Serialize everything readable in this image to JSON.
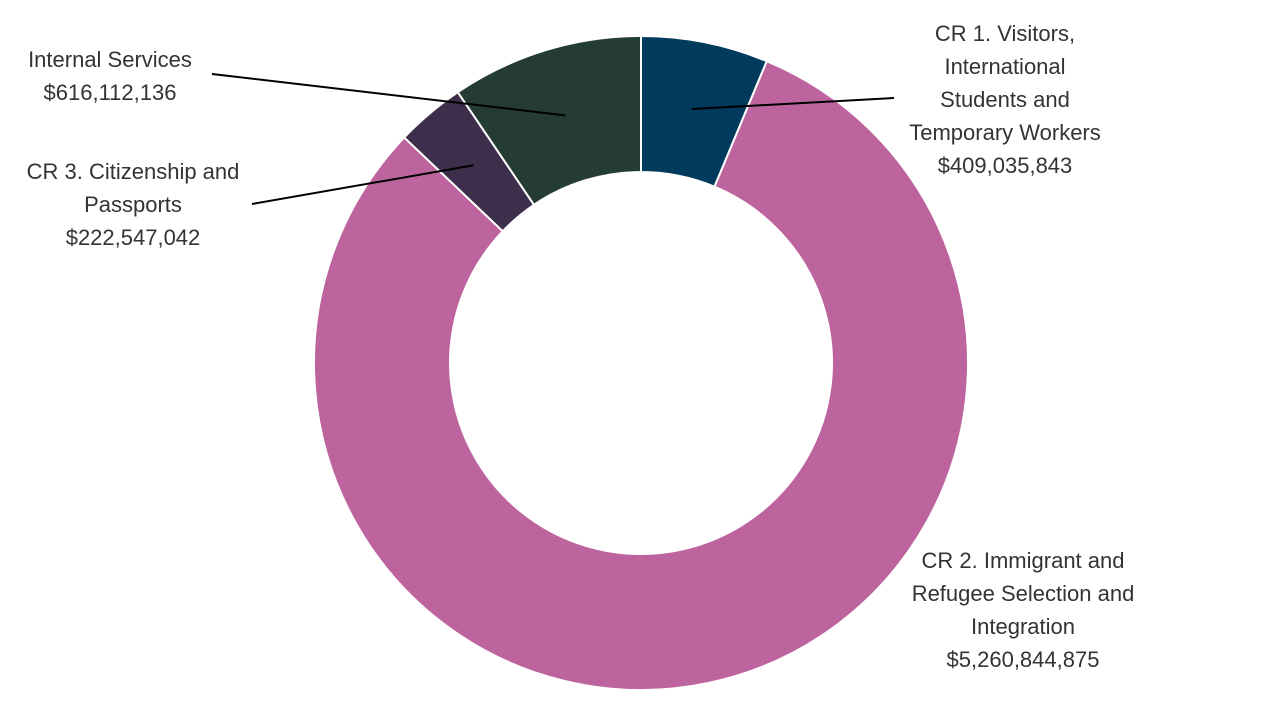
{
  "chart_data": {
    "type": "pie",
    "variant": "donut",
    "title": "",
    "slices": [
      {
        "name": "CR 1. Visitors, International Students and Temporary Workers",
        "label_lines": [
          "CR 1. Visitors,",
          "International",
          "Students and",
          "Temporary Workers"
        ],
        "value": 409035843,
        "value_label": "$409,035,843",
        "color": "#003a5c"
      },
      {
        "name": "CR 2. Immigrant and Refugee Selection and Integration",
        "label_lines": [
          "CR 2. Immigrant and",
          "Refugee Selection and",
          "Integration"
        ],
        "value": 5260844875,
        "value_label": "$5,260,844,875",
        "color": "#bd649e"
      },
      {
        "name": "CR 3. Citizenship and Passports",
        "label_lines": [
          "CR 3. Citizenship and",
          "Passports"
        ],
        "value": 222547042,
        "value_label": "$222,547,042",
        "color": "#3d2e4b"
      },
      {
        "name": "Internal Services",
        "label_lines": [
          "Internal Services"
        ],
        "value": 616112136,
        "value_label": "$616,112,136",
        "color": "#253c34"
      }
    ]
  }
}
